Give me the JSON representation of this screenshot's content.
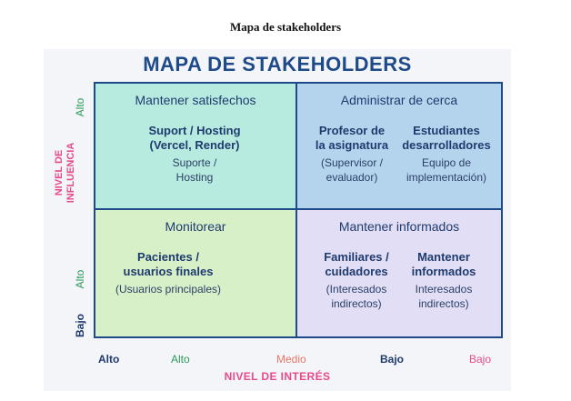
{
  "document_title": "Mapa de stakeholders",
  "diagram": {
    "title": "MAPA DE STAKEHOLDERS",
    "y_axis": {
      "title_line1": "NIVEL DE",
      "title_line2": "INFLUENCIA",
      "ticks": [
        "Alto",
        "Alto",
        "Bajo"
      ]
    },
    "x_axis": {
      "title": "NIVEL DE INTERÉS",
      "ticks": [
        "Alto",
        "Alto",
        "Medio",
        "Bajo",
        "Bajo"
      ]
    },
    "colors": {
      "navy": "#1f4a8a",
      "pink": "#e84a8c",
      "green": "#2e9a5a",
      "orange": "#e8776a"
    },
    "quadrants": {
      "top_left": {
        "heading": "Mantener satisfechos",
        "items": [
          {
            "name_line1": "Suport / Hosting",
            "name_line2": "(Vercel, Render)",
            "sub_line1": "Suporte /",
            "sub_line2": "Hosting"
          }
        ]
      },
      "top_right": {
        "heading": "Administrar de cerca",
        "items": [
          {
            "name_line1": "Profesor de",
            "name_line2": "la asignatura",
            "sub_line1": "(Supervisor /",
            "sub_line2": "evaluador)"
          },
          {
            "name_line1": "Estudiantes",
            "name_line2": "desarrolladores",
            "sub_line1": "Equipo de",
            "sub_line2": "implementación)"
          }
        ]
      },
      "bottom_left": {
        "heading": "Monitorear",
        "items": [
          {
            "name_line1": "Pacientes /",
            "name_line2": "usuarios finales",
            "sub_line1": "(Usuarios principales)"
          }
        ]
      },
      "bottom_right": {
        "heading": "Mantener informados",
        "items": [
          {
            "name_line1": "Familiares /",
            "name_line2": "cuidadores",
            "sub_line1": "(Interesados",
            "sub_line2": "indirectos)"
          },
          {
            "name_line1": "Mantener",
            "name_line2": "informados",
            "sub_line1": "Interesados",
            "sub_line2": "indirectos)"
          }
        ]
      }
    }
  }
}
